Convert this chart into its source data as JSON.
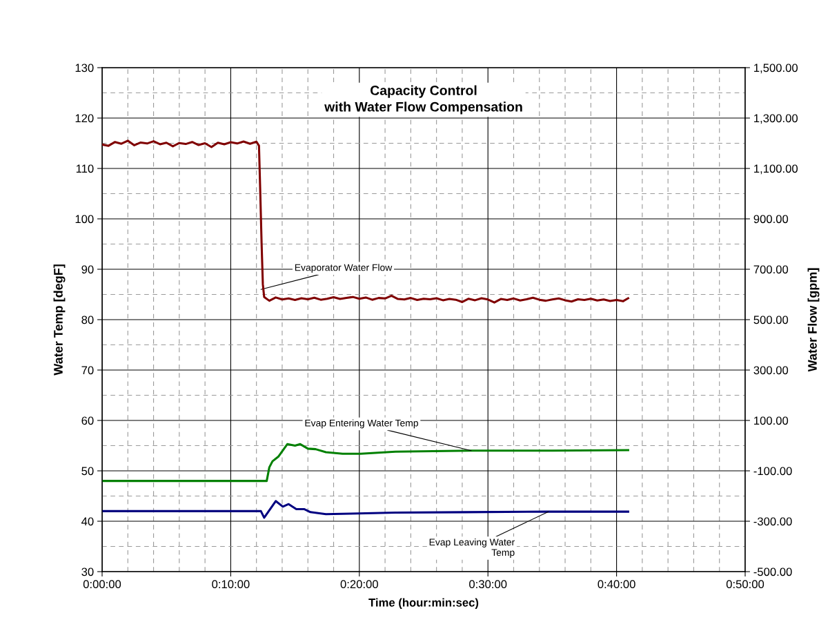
{
  "chart_data": {
    "type": "line",
    "title": "Capacity Control\nwith Water Flow Compensation",
    "xlabel": "Time (hour:min:sec)",
    "ylabel": "Water Temp [degF]",
    "y2label": "Water Flow [gpm]",
    "xlim": [
      0,
      0.833333
    ],
    "ylim": [
      30,
      130
    ],
    "y2lim": [
      -500,
      1500
    ],
    "xticks": [
      {
        "value": 0,
        "label": "0:00:00"
      },
      {
        "value": 0.166667,
        "label": "0:10:00"
      },
      {
        "value": 0.333333,
        "label": "0:20:00"
      },
      {
        "value": 0.5,
        "label": "0:30:00"
      },
      {
        "value": 0.666667,
        "label": "0:40:00"
      },
      {
        "value": 0.833333,
        "label": "0:50:00"
      }
    ],
    "yticks": [
      30,
      40,
      50,
      60,
      70,
      80,
      90,
      100,
      110,
      120,
      130
    ],
    "y2ticks": [
      {
        "value": -500,
        "label": "-500.00"
      },
      {
        "value": -300,
        "label": "-300.00"
      },
      {
        "value": -100,
        "label": "-100.00"
      },
      {
        "value": 100,
        "label": "100.00"
      },
      {
        "value": 300,
        "label": "300.00"
      },
      {
        "value": 500,
        "label": "500.00"
      },
      {
        "value": 700,
        "label": "700.00"
      },
      {
        "value": 900,
        "label": "900.00"
      },
      {
        "value": 1100,
        "label": "1,100.00"
      },
      {
        "value": 1300,
        "label": "1,300.00"
      },
      {
        "value": 1500,
        "label": "1,500.00"
      }
    ],
    "grid": true,
    "marker": "none",
    "line_style": "solid",
    "series": [
      {
        "color": "#800000",
        "axis": "y2",
        "x": [
          0,
          0.0083,
          0.0167,
          0.025,
          0.0333,
          0.0417,
          0.05,
          0.0583,
          0.0667,
          0.075,
          0.0833,
          0.0917,
          0.1,
          0.1083,
          0.1167,
          0.125,
          0.1333,
          0.1417,
          0.15,
          0.1583,
          0.1667,
          0.175,
          0.1833,
          0.1917,
          0.2,
          0.2033,
          0.205,
          0.2067,
          0.2083,
          0.21,
          0.2167,
          0.225,
          0.2333,
          0.2417,
          0.25,
          0.2583,
          0.2667,
          0.275,
          0.2833,
          0.2917,
          0.3,
          0.3083,
          0.3167,
          0.325,
          0.3333,
          0.3417,
          0.35,
          0.3583,
          0.3667,
          0.375,
          0.3833,
          0.3917,
          0.4,
          0.4083,
          0.4167,
          0.425,
          0.4333,
          0.4417,
          0.45,
          0.4583,
          0.4667,
          0.475,
          0.4833,
          0.4917,
          0.5,
          0.5083,
          0.5167,
          0.525,
          0.5333,
          0.5417,
          0.55,
          0.5583,
          0.5667,
          0.575,
          0.5833,
          0.5917,
          0.6,
          0.6083,
          0.6167,
          0.625,
          0.6333,
          0.6417,
          0.65,
          0.6583,
          0.6667,
          0.675,
          0.6817
        ],
        "values": [
          1195,
          1190,
          1205,
          1198,
          1210,
          1192,
          1203,
          1199,
          1208,
          1196,
          1202,
          1188,
          1201,
          1197,
          1205,
          1193,
          1200,
          1185,
          1202,
          1196,
          1204,
          1199,
          1207,
          1198,
          1206,
          1190,
          1000,
          800,
          640,
          590,
          575,
          588,
          580,
          584,
          578,
          585,
          581,
          587,
          579,
          583,
          589,
          582,
          586,
          590,
          583,
          588,
          579,
          586,
          584,
          595,
          582,
          580,
          586,
          578,
          583,
          581,
          585,
          577,
          582,
          579,
          570,
          583,
          577,
          585,
          580,
          568,
          582,
          578,
          584,
          576,
          581,
          587,
          579,
          575,
          580,
          584,
          577,
          572,
          581,
          578,
          583,
          576,
          580,
          574,
          578,
          573,
          585
        ]
      },
      {
        "color": "#008000",
        "x": [
          0,
          0.2133,
          0.2167,
          0.2208,
          0.2283,
          0.24,
          0.25,
          0.2567,
          0.2667,
          0.2767,
          0.29,
          0.3117,
          0.335,
          0.38,
          0.4783,
          0.5833,
          0.6817
        ],
        "values": [
          48,
          48,
          50.7,
          51.9,
          52.8,
          55.3,
          55.0,
          55.3,
          54.4,
          54.3,
          53.7,
          53.4,
          53.4,
          53.8,
          54.0,
          54.0,
          54.1
        ]
      },
      {
        "color": "#000080",
        "x": [
          0,
          0.2058,
          0.21,
          0.225,
          0.2342,
          0.2417,
          0.2517,
          0.2617,
          0.27,
          0.29,
          0.3217,
          0.38,
          0.47,
          0.5783,
          0.6817
        ],
        "values": [
          42,
          42,
          40.7,
          44.0,
          42.9,
          43.4,
          42.4,
          42.4,
          41.8,
          41.4,
          41.5,
          41.7,
          41.8,
          41.9,
          41.9
        ]
      }
    ],
    "annotations": [
      {
        "text": "Evaporator Water Flow",
        "x": 0.2058,
        "y": 86
      },
      {
        "text": "Evap Entering Water Temp",
        "x": 0.4783,
        "y": 54.0
      },
      {
        "text": "Evap Leaving Water\nTemp",
        "x": 0.5783,
        "y": 41.9
      }
    ]
  }
}
